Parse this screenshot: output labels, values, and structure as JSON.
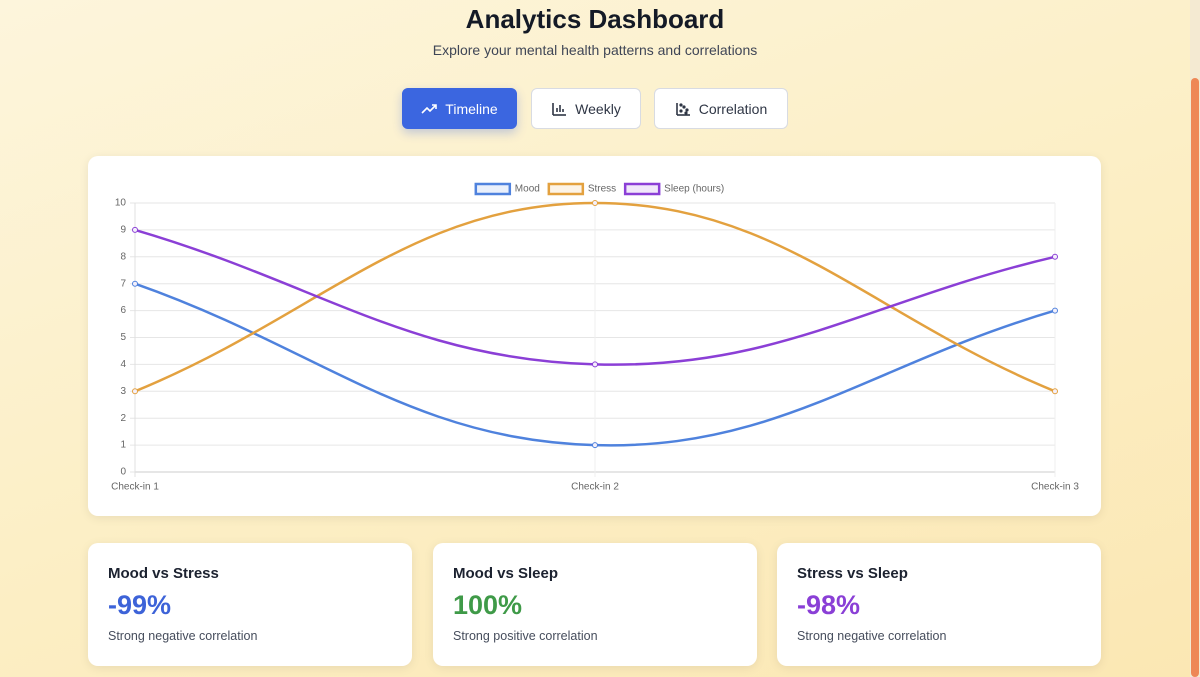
{
  "header": {
    "title": "Analytics Dashboard",
    "subtitle": "Explore your mental health patterns and correlations"
  },
  "tabs": [
    {
      "label": "Timeline",
      "active": true
    },
    {
      "label": "Weekly",
      "active": false
    },
    {
      "label": "Correlation",
      "active": false
    }
  ],
  "chart_data": {
    "type": "line",
    "categories": [
      "Check-in 1",
      "Check-in 2",
      "Check-in 3"
    ],
    "series": [
      {
        "name": "Mood",
        "color": "#4f82dd",
        "values": [
          7,
          1,
          6
        ]
      },
      {
        "name": "Stress",
        "color": "#e3a13f",
        "values": [
          3,
          10,
          3
        ]
      },
      {
        "name": "Sleep (hours)",
        "color": "#8b3fd6",
        "values": [
          9,
          4,
          8
        ]
      }
    ],
    "ylim": [
      0,
      10
    ],
    "yticks": [
      0,
      1,
      2,
      3,
      4,
      5,
      6,
      7,
      8,
      9,
      10
    ],
    "grid": true,
    "legend": "top"
  },
  "cards": [
    {
      "title": "Mood vs Stress",
      "value": "-99%",
      "description": "Strong negative correlation",
      "color": "#3d63d8"
    },
    {
      "title": "Mood vs Sleep",
      "value": "100%",
      "description": "Strong positive correlation",
      "color": "#3f9a48"
    },
    {
      "title": "Stress vs Sleep",
      "value": "-98%",
      "description": "Strong negative correlation",
      "color": "#8a3fd6"
    }
  ]
}
